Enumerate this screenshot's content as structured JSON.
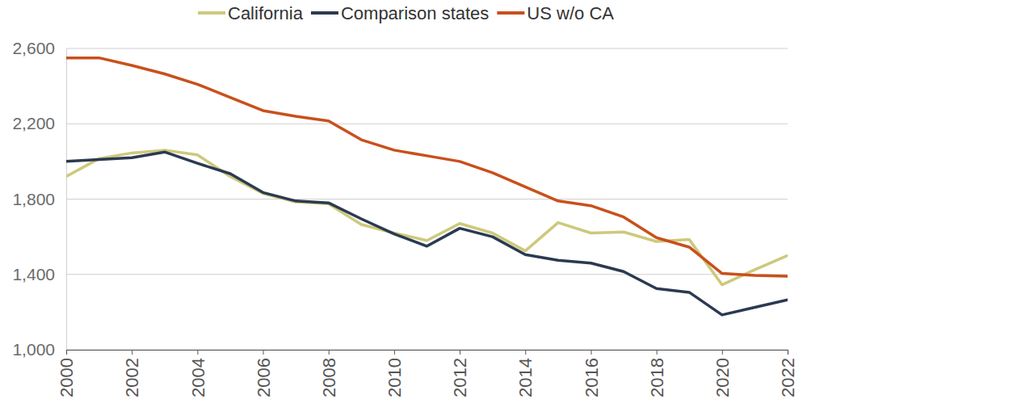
{
  "chart_data": {
    "type": "line",
    "x": [
      2000,
      2001,
      2002,
      2003,
      2004,
      2005,
      2006,
      2007,
      2008,
      2009,
      2010,
      2011,
      2012,
      2013,
      2014,
      2015,
      2016,
      2017,
      2018,
      2019,
      2020,
      2021,
      2022
    ],
    "series": [
      {
        "name": "California",
        "color": "#cdc97c",
        "values": [
          1920,
          2015,
          2045,
          2060,
          2035,
          1920,
          1830,
          1785,
          1775,
          1665,
          1620,
          1580,
          1670,
          1620,
          1525,
          1675,
          1620,
          1625,
          1575,
          1585,
          1345,
          1425,
          1500
        ]
      },
      {
        "name": "Comparison states",
        "color": "#2b3a52",
        "values": [
          2000,
          2010,
          2020,
          2050,
          1990,
          1935,
          1835,
          1790,
          1780,
          1695,
          1615,
          1550,
          1645,
          1600,
          1505,
          1475,
          1460,
          1415,
          1325,
          1305,
          1185,
          1225,
          1265
        ]
      },
      {
        "name": "US w/o CA",
        "color": "#c9501c",
        "values": [
          2550,
          2550,
          2510,
          2465,
          2410,
          2340,
          2270,
          2240,
          2215,
          2115,
          2060,
          2030,
          2000,
          1940,
          1865,
          1790,
          1765,
          1705,
          1595,
          1545,
          1405,
          1395,
          1390
        ]
      }
    ],
    "xlim": [
      2000,
      2022
    ],
    "xticks": [
      2000,
      2002,
      2004,
      2006,
      2008,
      2010,
      2012,
      2014,
      2016,
      2018,
      2020,
      2022
    ],
    "ylim": [
      1000,
      2600
    ],
    "yticks": [
      {
        "value": 1000,
        "label": "1,000"
      },
      {
        "value": 1400,
        "label": "1,400"
      },
      {
        "value": 1800,
        "label": "1,800"
      },
      {
        "value": 2200,
        "label": "2,200"
      },
      {
        "value": 2600,
        "label": "2,600"
      }
    ],
    "grid": true,
    "legend": "top"
  }
}
